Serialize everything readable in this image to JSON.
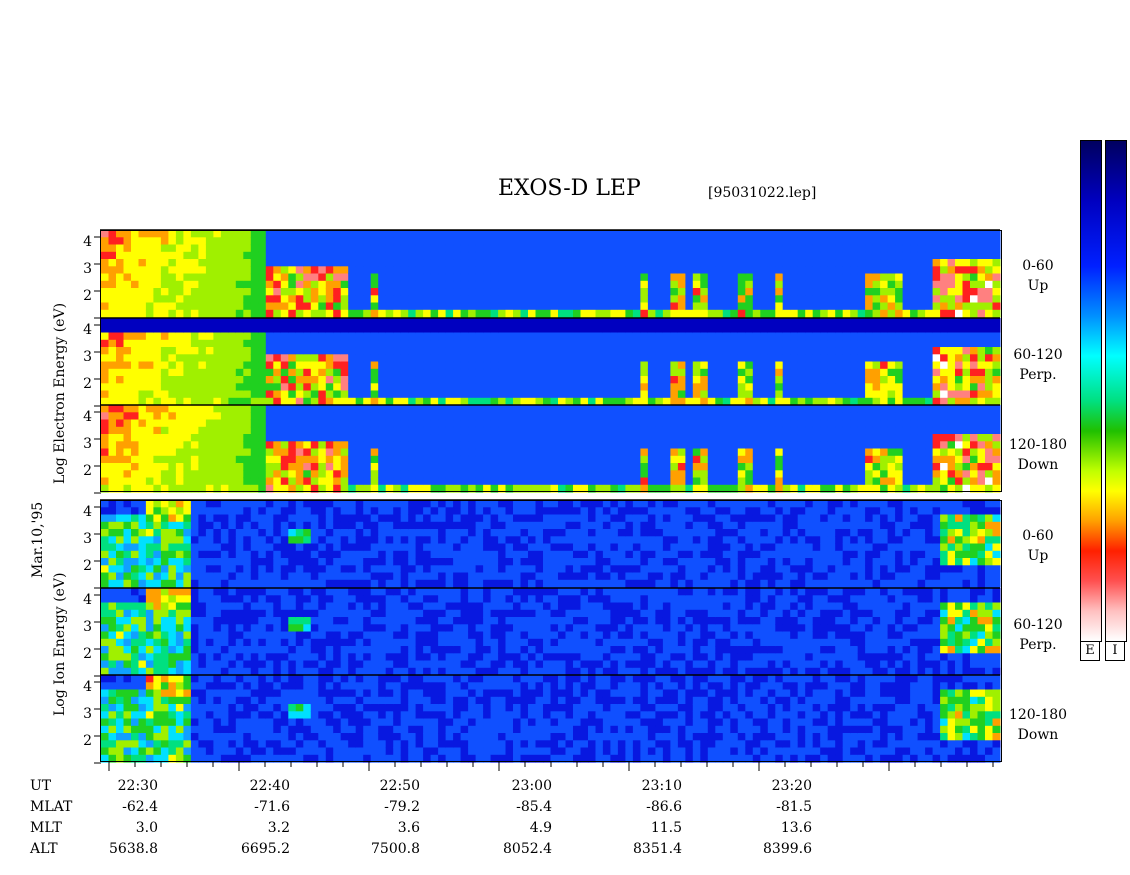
{
  "header": {
    "title": "EXOS-D LEP",
    "filename": "[95031022.lep]"
  },
  "labels": {
    "electron_axis": "Log Electron Energy (eV)",
    "ion_axis": "Log Ion Energy (eV)",
    "date": "Mar.10,'95",
    "colorbar_e": "E",
    "colorbar_i": "I"
  },
  "panels": [
    {
      "species": "electron",
      "angle": "0-60",
      "dir": "Up"
    },
    {
      "species": "electron",
      "angle": "60-120",
      "dir": "Perp."
    },
    {
      "species": "electron",
      "angle": "120-180",
      "dir": "Down"
    },
    {
      "species": "ion",
      "angle": "0-60",
      "dir": "Up"
    },
    {
      "species": "ion",
      "angle": "60-120",
      "dir": "Perp."
    },
    {
      "species": "ion",
      "angle": "120-180",
      "dir": "Down"
    }
  ],
  "yticks": [
    "4",
    "3",
    "2"
  ],
  "xaxis": {
    "row_labels": [
      "UT",
      "MLAT",
      "MLT",
      "ALT"
    ],
    "ut": [
      "22:30",
      "22:40",
      "22:50",
      "23:00",
      "23:10",
      "23:20"
    ],
    "mlat": [
      "-62.4",
      "-71.6",
      "-79.2",
      "-85.4",
      "-86.6",
      "-81.5"
    ],
    "mlt": [
      "3.0",
      "3.2",
      "3.6",
      "4.9",
      "11.5",
      "13.6"
    ],
    "alt": [
      "5638.8",
      "6695.2",
      "7500.8",
      "8052.4",
      "8351.4",
      "8399.6"
    ]
  },
  "chart_data": {
    "type": "heatmap",
    "title": "EXOS-D LEP",
    "xlabel": "UT",
    "ylabel": "Log Energy (eV)",
    "ylim": [
      1,
      4
    ],
    "x_ticks": [
      "22:30",
      "22:40",
      "22:50",
      "23:00",
      "23:10",
      "23:20"
    ],
    "colorscale": [
      "#ffffff",
      "#ff0000",
      "#ffff00",
      "#00cc00",
      "#00ffff",
      "#0000ff",
      "#000080"
    ],
    "colors": {
      "background": "#1030c0",
      "low": "#0818a0",
      "mid": "#10b0e0",
      "high_green": "#20d040",
      "high_red": "#e02020"
    }
  }
}
